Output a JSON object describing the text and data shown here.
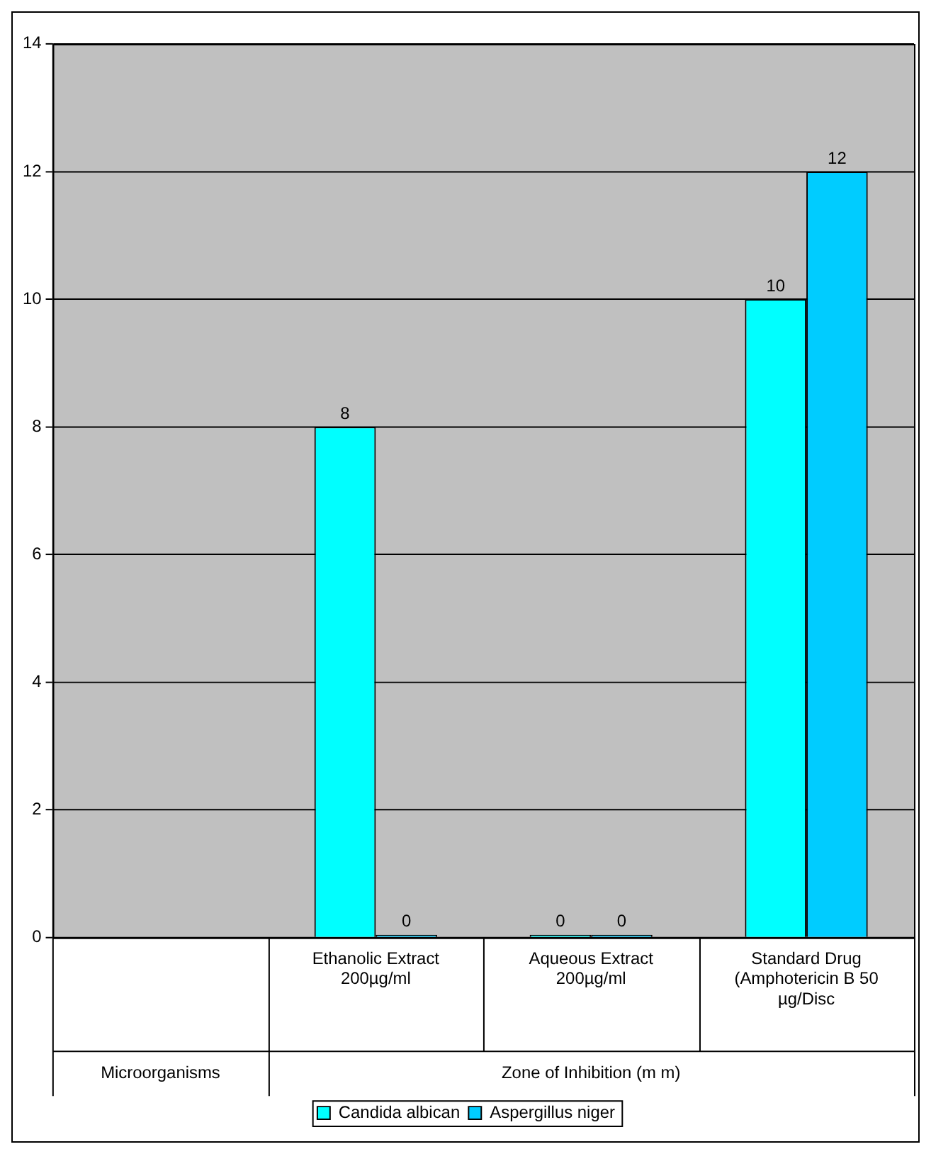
{
  "chart_data": {
    "type": "bar",
    "categories": [
      null,
      "Ethanolic Extract 200µg/ml",
      "Aqueous Extract 200µg/ml",
      "Standard Drug (Amphotericin B 50 µg/Disc"
    ],
    "series": [
      {
        "name": "Candida albican",
        "color": "#00ffff",
        "values": [
          null,
          8,
          0,
          10
        ]
      },
      {
        "name": "Aspergillus niger",
        "color": "#00ccff",
        "values": [
          null,
          0,
          0,
          12
        ]
      }
    ],
    "ylim": [
      0,
      14
    ],
    "yticks": [
      0,
      2,
      4,
      6,
      8,
      10,
      12,
      14
    ],
    "grid": "y",
    "legend": "bottom",
    "data_labels": true,
    "annotations": [
      "Microorganisms",
      "Zone of Inhibition (m m)"
    ]
  }
}
